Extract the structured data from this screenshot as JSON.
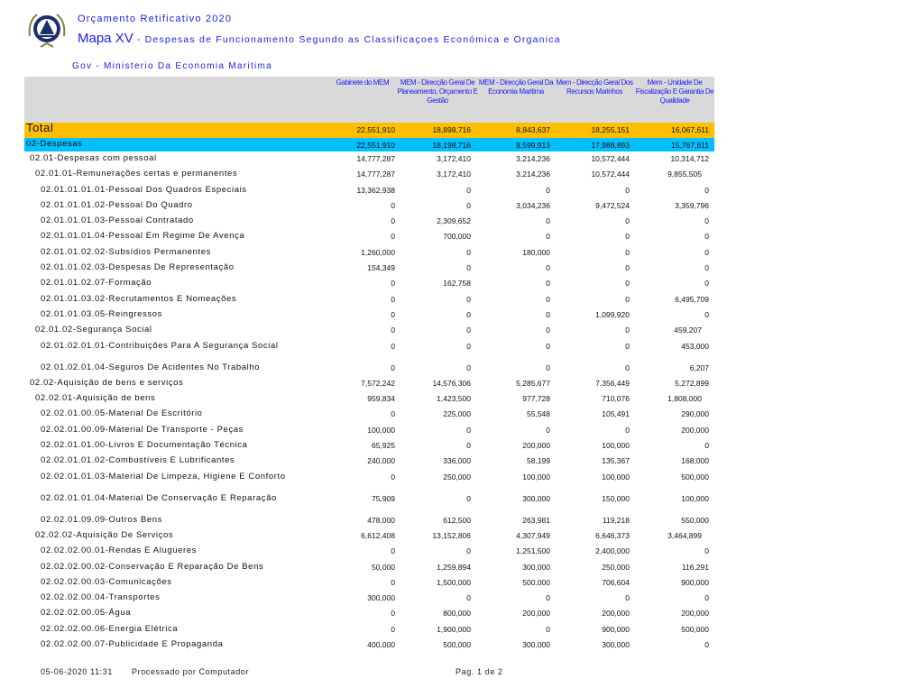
{
  "header": {
    "subtitle": "Orçamento Retificativo 2020",
    "map_title": "Mapa XV",
    "map_desc": " - Despesas de Funcionamento Segundo as Classificaçoes Económica e Organica",
    "entity": "Gov - Ministerio Da Economia Maritima",
    "logo": "national-emblem-cabo-verde"
  },
  "columns": [
    "Gabinete do MEM",
    "MEM - Direcção Geral De Planeamento, Orçamento E Gestão",
    "MEM - Direcção Geral Da Economia Maritima",
    "Mem - Direcção Geral Dos Recursos Marinhos",
    "Mem - Unidade De Fiscalização E Garantia De Qualidade"
  ],
  "colors": {
    "total": "#ffbf00",
    "despesas": "#00bfff",
    "header": "#d9d9d9",
    "title": "#1a1aff"
  },
  "rows": [
    {
      "type": "total",
      "label": "Total",
      "values": [
        "22,551,910",
        "18,898,716",
        "8,843,637",
        "18,255,151",
        "16,067,611"
      ]
    },
    {
      "type": "desp",
      "label": "02-Despesas",
      "values": [
        "22,551,910",
        "18,198,716",
        "8,599,913",
        "17,988,893",
        "15,767,611"
      ]
    },
    {
      "level": 1,
      "label": "02.01-Despesas com pessoal",
      "values": [
        "14,777,287",
        "3,172,410",
        "3,214,236",
        "10,572,444",
        "10,314,712"
      ]
    },
    {
      "level": 2,
      "label": "02.01.01-Remunerações certas e permanentes",
      "values": [
        "14,777,287",
        "3,172,410",
        "3,214,236",
        "10,572,444",
        "9,855,505"
      ]
    },
    {
      "level": 3,
      "label": "02.01.01.01.01-Pessoal Dos Quadros Especiais",
      "values": [
        "13,362,938",
        "0",
        "0",
        "0",
        "0"
      ]
    },
    {
      "level": 3,
      "label": "02.01.01.01.02-Pessoal Do Quadro",
      "values": [
        "0",
        "0",
        "3,034,236",
        "9,472,524",
        "3,359,796"
      ]
    },
    {
      "level": 3,
      "label": "02.01.01.01.03-Pessoal Contratado",
      "values": [
        "0",
        "2,309,652",
        "0",
        "0",
        "0"
      ]
    },
    {
      "level": 3,
      "label": "02.01.01.01.04-Pessoal Em Regime De Avença",
      "values": [
        "0",
        "700,000",
        "0",
        "0",
        "0"
      ]
    },
    {
      "level": 3,
      "label": "02.01.01.02.02-Subsídios Permanentes",
      "values": [
        "1,260,000",
        "0",
        "180,000",
        "0",
        "0"
      ]
    },
    {
      "level": 3,
      "label": "02.01.01.02.03-Despesas De Representação",
      "values": [
        "154,349",
        "0",
        "0",
        "0",
        "0"
      ]
    },
    {
      "level": 3,
      "label": "02.01.01.02.07-Formação",
      "values": [
        "0",
        "162,758",
        "0",
        "0",
        "0"
      ]
    },
    {
      "level": 3,
      "label": "02.01.01.03.02-Recrutamentos E Nomeações",
      "values": [
        "0",
        "0",
        "0",
        "0",
        "6,495,709"
      ]
    },
    {
      "level": 3,
      "label": "02.01.01.03.05-Reingressos",
      "values": [
        "0",
        "0",
        "0",
        "1,099,920",
        "0"
      ]
    },
    {
      "level": 2,
      "label": "02.01.02-Segurança Social",
      "values": [
        "0",
        "0",
        "0",
        "0",
        "459,207"
      ]
    },
    {
      "level": 3,
      "label": "02.01.02.01.01-Contribuições Para A Segurança Social",
      "values": [
        "0",
        "0",
        "0",
        "0",
        "453,000"
      ]
    },
    {
      "level": 3,
      "label": "02.01.02.01.04-Seguros De Acidentes No Trabalho",
      "values": [
        "0",
        "0",
        "0",
        "0",
        "6,207"
      ]
    },
    {
      "level": 1,
      "label": "02.02-Aquisição de bens e serviços",
      "values": [
        "7,572,242",
        "14,576,306",
        "5,285,677",
        "7,356,449",
        "5,272,899"
      ]
    },
    {
      "level": 2,
      "label": "02.02.01-Aquisição de bens",
      "values": [
        "959,834",
        "1,423,500",
        "977,728",
        "710,076",
        "1,808,000"
      ]
    },
    {
      "level": 3,
      "label": "02.02.01.00.05-Material De Escritório",
      "values": [
        "0",
        "225,000",
        "55,548",
        "105,491",
        "290,000"
      ]
    },
    {
      "level": 3,
      "label": "02.02.01.00.09-Material De Transporte - Peças",
      "values": [
        "100,000",
        "0",
        "0",
        "0",
        "200,000"
      ]
    },
    {
      "level": 3,
      "label": "02.02.01.01.00-Livros E Documentação Técnica",
      "values": [
        "65,925",
        "0",
        "200,000",
        "100,000",
        "0"
      ]
    },
    {
      "level": 3,
      "label": "02.02.01.01.02-Combustíveis E Lubrificantes",
      "values": [
        "240,000",
        "336,000",
        "58,199",
        "135,367",
        "168,000"
      ]
    },
    {
      "level": 3,
      "label": "02.02.01.01.03-Material De Limpeza, Higiene E Conforto",
      "values": [
        "0",
        "250,000",
        "100,000",
        "100,000",
        "500,000"
      ]
    },
    {
      "level": 3,
      "label": "02.02.01.01.04-Material De Conservação E Reparação",
      "values": [
        "75,909",
        "0",
        "300,000",
        "150,000",
        "100,000"
      ]
    },
    {
      "level": 3,
      "label": "02.02.01.09.09-Outros Bens",
      "values": [
        "478,000",
        "612,500",
        "263,981",
        "119,218",
        "550,000"
      ]
    },
    {
      "level": 2,
      "label": "02.02.02-Aquisição De Serviços",
      "values": [
        "6,612,408",
        "13,152,806",
        "4,307,949",
        "6,646,373",
        "3,464,899"
      ]
    },
    {
      "level": 3,
      "label": "02.02.02.00.01-Rendas E Alugueres",
      "values": [
        "0",
        "0",
        "1,251,500",
        "2,400,000",
        "0"
      ]
    },
    {
      "level": 3,
      "label": "02.02.02.00.02-Conservação E Reparação De Bens",
      "values": [
        "50,000",
        "1,259,894",
        "300,000",
        "250,000",
        "116,291"
      ]
    },
    {
      "level": 3,
      "label": "02.02.02.00.03-Comunicações",
      "values": [
        "0",
        "1,500,000",
        "500,000",
        "706,604",
        "900,000"
      ]
    },
    {
      "level": 3,
      "label": "02.02.02.00.04-Transportes",
      "values": [
        "300,000",
        "0",
        "0",
        "0",
        "0"
      ]
    },
    {
      "level": 3,
      "label": "02.02.02.00.05-Água",
      "values": [
        "0",
        "800,000",
        "200,000",
        "200,000",
        "200,000"
      ]
    },
    {
      "level": 3,
      "label": "02.02.02.00.06-Energia Elétrica",
      "values": [
        "0",
        "1,900,000",
        "0",
        "900,000",
        "500,000"
      ]
    },
    {
      "level": 3,
      "label": "02.02.02.00.07-Publicidade E Propaganda",
      "values": [
        "400,000",
        "500,000",
        "300,000",
        "300,000",
        "0"
      ]
    }
  ],
  "footer": {
    "datetime": "05-06-2020 11:31",
    "processed": "Processado por Computador",
    "page": "Pag. 1 de 2"
  }
}
